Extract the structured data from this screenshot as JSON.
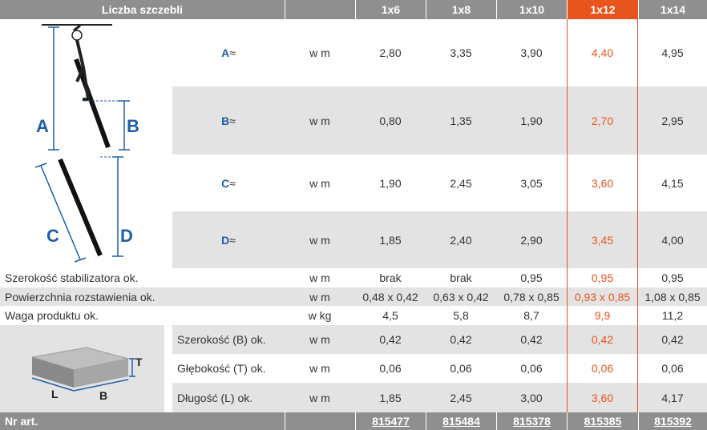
{
  "header": {
    "title": "Liczba szczebli",
    "columns": [
      "1x6",
      "1x8",
      "1x10",
      "1x12",
      "1x14"
    ]
  },
  "highlight_color": "#e8541e",
  "ladder_rows": [
    {
      "label": "A",
      "symbol": "≈",
      "unit": "w m",
      "values": [
        "2,80",
        "3,35",
        "3,90",
        "4,40",
        "4,95"
      ]
    },
    {
      "label": "B",
      "symbol": "≈",
      "unit": "w m",
      "values": [
        "0,80",
        "1,35",
        "1,90",
        "2,70",
        "2,95"
      ]
    },
    {
      "label": "C",
      "symbol": "≈",
      "unit": "w m",
      "values": [
        "1,90",
        "2,45",
        "3,05",
        "3,60",
        "4,15"
      ]
    },
    {
      "label": "D",
      "symbol": "≈",
      "unit": "w m",
      "values": [
        "1,85",
        "2,40",
        "2,90",
        "3,45",
        "4,00"
      ]
    }
  ],
  "spec_rows": [
    {
      "label": "Szerokość stabilizatora ok.",
      "unit": "w m",
      "values": [
        "brak",
        "brak",
        "0,95",
        "0,95",
        "0,95"
      ]
    },
    {
      "label": "Powierzchnia rozstawienia ok.",
      "unit": "w m",
      "values": [
        "0,48 x 0,42",
        "0,63 x 0,42",
        "0,78 x 0,85",
        "0,93 x 0,85",
        "1,08 x 0,85"
      ]
    },
    {
      "label": "Waga produktu ok.",
      "unit": "w kg",
      "values": [
        "4,5",
        "5,8",
        "8,7",
        "9,9",
        "11,2"
      ]
    }
  ],
  "package_rows": [
    {
      "label": "Szerokość (B) ok.",
      "unit": "w m",
      "values": [
        "0,42",
        "0,42",
        "0,42",
        "0,42",
        "0,42"
      ]
    },
    {
      "label": "Głębokość (T) ok.",
      "unit": "w m",
      "values": [
        "0,06",
        "0,06",
        "0,06",
        "0,06",
        "0,06"
      ]
    },
    {
      "label": "Długość (L) ok.",
      "unit": "w m",
      "values": [
        "1,85",
        "2,45",
        "3,00",
        "3,60",
        "4,17"
      ]
    }
  ],
  "diagram_labels": {
    "a": "A",
    "b": "B",
    "c": "C",
    "d": "D"
  },
  "box_labels": {
    "t": "T",
    "l": "L",
    "b": "B"
  },
  "footer": {
    "label": "Nr art.",
    "articles": [
      "815477",
      "815484",
      "815378",
      "815385",
      "815392"
    ]
  }
}
